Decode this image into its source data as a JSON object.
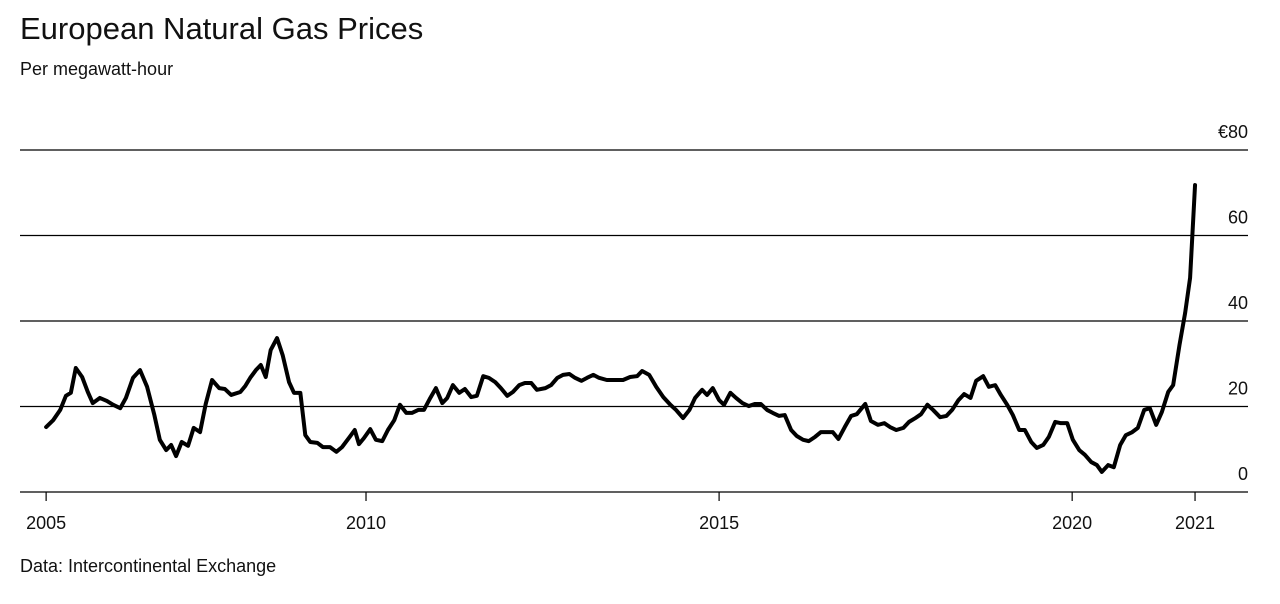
{
  "chart_data": {
    "type": "line",
    "title": "European Natural Gas Prices",
    "subtitle": "Per megawatt-hour",
    "source": "Data: Intercontinental Exchange",
    "color": "#000000",
    "grid": true,
    "xlim": [
      2005.1,
      2022.49
    ],
    "xticks": [
      {
        "value": 2005.47,
        "label": "2005"
      },
      2010,
      2015,
      2020,
      {
        "value": 2021.74,
        "label": "2021"
      }
    ],
    "ylim": [
      0,
      80
    ],
    "yticks": [
      0,
      20,
      40,
      60,
      {
        "value": 80,
        "label": "€80"
      }
    ],
    "x": [
      2005.47,
      2005.57,
      2005.67,
      2005.75,
      2005.82,
      2005.89,
      2005.98,
      2006.06,
      2006.13,
      2006.23,
      2006.33,
      2006.42,
      2006.52,
      2006.6,
      2006.7,
      2006.8,
      2006.9,
      2007.0,
      2007.08,
      2007.17,
      2007.24,
      2007.31,
      2007.39,
      2007.48,
      2007.56,
      2007.65,
      2007.73,
      2007.82,
      2007.92,
      2008.0,
      2008.09,
      2008.22,
      2008.29,
      2008.36,
      2008.44,
      2008.51,
      2008.58,
      2008.65,
      2008.74,
      2008.82,
      2008.91,
      2008.98,
      2009.07,
      2009.14,
      2009.21,
      2009.31,
      2009.39,
      2009.49,
      2009.58,
      2009.66,
      2009.77,
      2009.84,
      2009.9,
      2009.97,
      2010.06,
      2010.14,
      2010.23,
      2010.31,
      2010.4,
      2010.48,
      2010.57,
      2010.65,
      2010.74,
      2010.82,
      2010.91,
      2010.99,
      2011.08,
      2011.15,
      2011.23,
      2011.32,
      2011.4,
      2011.49,
      2011.57,
      2011.66,
      2011.74,
      2011.83,
      2011.91,
      2012.0,
      2012.08,
      2012.17,
      2012.25,
      2012.34,
      2012.42,
      2012.54,
      2012.62,
      2012.71,
      2012.79,
      2012.88,
      2012.96,
      2013.05,
      2013.13,
      2013.22,
      2013.3,
      2013.41,
      2013.53,
      2013.64,
      2013.74,
      2013.84,
      2013.91,
      2014.01,
      2014.11,
      2014.21,
      2014.31,
      2014.39,
      2014.49,
      2014.58,
      2014.66,
      2014.76,
      2014.83,
      2014.91,
      2015.0,
      2015.07,
      2015.16,
      2015.24,
      2015.33,
      2015.42,
      2015.51,
      2015.59,
      2015.68,
      2015.76,
      2015.85,
      2015.93,
      2016.02,
      2016.1,
      2016.19,
      2016.27,
      2016.36,
      2016.44,
      2016.53,
      2016.61,
      2016.69,
      2016.78,
      2016.87,
      2016.95,
      2017.07,
      2017.15,
      2017.25,
      2017.34,
      2017.42,
      2017.51,
      2017.61,
      2017.69,
      2017.78,
      2017.86,
      2017.95,
      2018.03,
      2018.13,
      2018.22,
      2018.3,
      2018.39,
      2018.47,
      2018.56,
      2018.64,
      2018.74,
      2018.82,
      2018.91,
      2018.99,
      2019.08,
      2019.16,
      2019.25,
      2019.33,
      2019.42,
      2019.5,
      2019.59,
      2019.67,
      2019.76,
      2019.84,
      2019.93,
      2020.01,
      2020.1,
      2020.18,
      2020.27,
      2020.35,
      2020.42,
      2020.51,
      2020.59,
      2020.68,
      2020.76,
      2020.85,
      2020.93,
      2021.02,
      2021.1,
      2021.19,
      2021.27,
      2021.36,
      2021.43,
      2021.52,
      2021.6,
      2021.67,
      2021.74
    ],
    "values": [
      15.2,
      16.8,
      19.2,
      22.5,
      23.2,
      29,
      26.9,
      23.4,
      20.8,
      22,
      21.3,
      20.4,
      19.6,
      22,
      26.7,
      28.5,
      24.6,
      18.2,
      12.2,
      9.8,
      11,
      8.4,
      11.7,
      10.8,
      15,
      14,
      20.6,
      26.2,
      24.3,
      24.1,
      22.7,
      23.4,
      24.8,
      26.7,
      28.5,
      29.7,
      26.9,
      33.2,
      36,
      32,
      25.7,
      23.2,
      23.2,
      13.3,
      11.7,
      11.5,
      10.5,
      10.5,
      9.4,
      10.5,
      12.9,
      14.5,
      11.2,
      12.6,
      14.7,
      12.2,
      11.9,
      14.5,
      16.8,
      20.4,
      18.5,
      18.5,
      19.2,
      19.2,
      22,
      24.3,
      20.8,
      22,
      25,
      23.2,
      24.1,
      22.2,
      22.5,
      27.1,
      26.7,
      25.7,
      24.3,
      22.5,
      23.4,
      25,
      25.5,
      25.5,
      23.9,
      24.3,
      25,
      26.7,
      27.4,
      27.6,
      26.7,
      26,
      26.7,
      27.4,
      26.7,
      26.2,
      26.2,
      26.2,
      26.9,
      27.1,
      28.3,
      27.4,
      24.6,
      22.2,
      20.4,
      19.2,
      17.3,
      19.2,
      22,
      23.9,
      22.7,
      24.3,
      21.5,
      20.4,
      23.2,
      22,
      20.8,
      20.1,
      20.6,
      20.6,
      19.2,
      18.5,
      17.8,
      18,
      14.5,
      13.1,
      12.2,
      11.9,
      12.9,
      14,
      14,
      14,
      12.4,
      15.2,
      17.8,
      18.2,
      20.6,
      16.6,
      15.7,
      16.1,
      15.2,
      14.5,
      15,
      16.4,
      17.3,
      18.2,
      20.4,
      19.2,
      17.5,
      17.8,
      19.2,
      21.5,
      22.9,
      22,
      26,
      27.1,
      24.6,
      25,
      22.7,
      20.4,
      18,
      14.5,
      14.5,
      11.7,
      10.3,
      11,
      12.9,
      16.4,
      16.1,
      16.1,
      12.2,
      9.8,
      8.7,
      7,
      6.3,
      4.7,
      6.3,
      5.8,
      11,
      13.3,
      14,
      15,
      19.2,
      19.6,
      15.7,
      18.7,
      23.4,
      25,
      34.4,
      41.9,
      50.1,
      71.8
    ]
  }
}
